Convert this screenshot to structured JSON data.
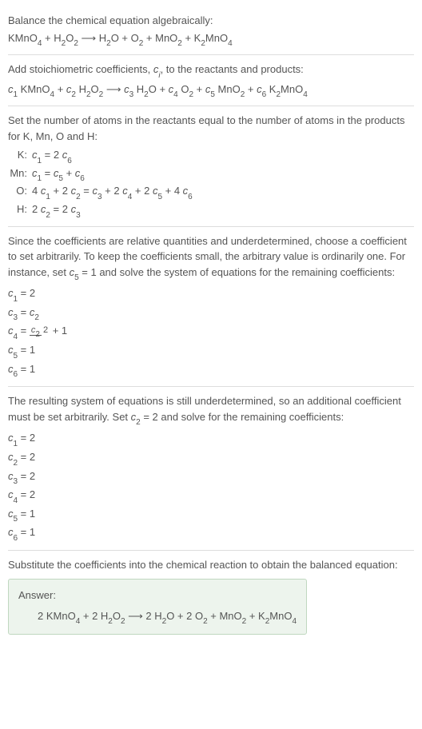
{
  "section1": {
    "line1": "Balance the chemical equation algebraically:",
    "eq_parts": [
      "KMnO",
      "4",
      " + H",
      "2",
      "O",
      "2",
      "  ⟶  H",
      "2",
      "O + O",
      "2",
      " + MnO",
      "2",
      " + K",
      "2",
      "MnO",
      "4"
    ]
  },
  "section2": {
    "line1_a": "Add stoichiometric coefficients, ",
    "line1_ci": "c",
    "line1_i": "i",
    "line1_b": ", to the reactants and products:",
    "eq_parts": [
      "c",
      "1",
      " KMnO",
      "4",
      " + ",
      "c",
      "2",
      " H",
      "2",
      "O",
      "2",
      "  ⟶  ",
      "c",
      "3",
      " H",
      "2",
      "O + ",
      "c",
      "4",
      " O",
      "2",
      " + ",
      "c",
      "5",
      " MnO",
      "2",
      " + ",
      "c",
      "6",
      " K",
      "2",
      "MnO",
      "4"
    ]
  },
  "section3": {
    "line1": "Set the number of atoms in the reactants equal to the number of atoms in the products for K, Mn, O and H:",
    "rows": [
      {
        "label": "K:",
        "eq": [
          "c",
          "1",
          " = 2 ",
          "c",
          "6"
        ]
      },
      {
        "label": "Mn:",
        "eq": [
          "c",
          "1",
          " = ",
          "c",
          "5",
          " + ",
          "c",
          "6"
        ]
      },
      {
        "label": "O:",
        "eq": [
          "4 ",
          "c",
          "1",
          " + 2 ",
          "c",
          "2",
          " = ",
          "c",
          "3",
          " + 2 ",
          "c",
          "4",
          " + 2 ",
          "c",
          "5",
          " + 4 ",
          "c",
          "6"
        ]
      },
      {
        "label": "H:",
        "eq": [
          "2 ",
          "c",
          "2",
          " = 2 ",
          "c",
          "3"
        ]
      }
    ]
  },
  "section4": {
    "line1_a": "Since the coefficients are relative quantities and underdetermined, choose a coefficient to set arbitrarily. To keep the coefficients small, the arbitrary value is ordinarily one. For instance, set ",
    "line1_c": "c",
    "line1_5": "5",
    "line1_b": " = 1 and solve the system of equations for the remaining coefficients:",
    "rows": [
      {
        "lhs": [
          "c",
          "1"
        ],
        "rhs": " = 2"
      },
      {
        "lhs": [
          "c",
          "3"
        ],
        "rhs_parts": [
          " = ",
          "c",
          "2"
        ]
      },
      {
        "lhs": [
          "c",
          "4"
        ],
        "frac_num": [
          "c",
          "2"
        ],
        "frac_den": "2",
        "rhs_after": " + 1"
      },
      {
        "lhs": [
          "c",
          "5"
        ],
        "rhs": " = 1"
      },
      {
        "lhs": [
          "c",
          "6"
        ],
        "rhs": " = 1"
      }
    ]
  },
  "section5": {
    "line1_a": "The resulting system of equations is still underdetermined, so an additional coefficient must be set arbitrarily. Set ",
    "line1_c": "c",
    "line1_2": "2",
    "line1_b": " = 2 and solve for the remaining coefficients:",
    "rows": [
      {
        "c": "c",
        "i": "1",
        "v": " = 2"
      },
      {
        "c": "c",
        "i": "2",
        "v": " = 2"
      },
      {
        "c": "c",
        "i": "3",
        "v": " = 2"
      },
      {
        "c": "c",
        "i": "4",
        "v": " = 2"
      },
      {
        "c": "c",
        "i": "5",
        "v": " = 1"
      },
      {
        "c": "c",
        "i": "6",
        "v": " = 1"
      }
    ]
  },
  "section6": {
    "line1": "Substitute the coefficients into the chemical reaction to obtain the balanced equation:",
    "answer_label": "Answer:",
    "eq_parts": [
      "2 KMnO",
      "4",
      " + 2 H",
      "2",
      "O",
      "2",
      "  ⟶  2 H",
      "2",
      "O + 2 O",
      "2",
      " + MnO",
      "2",
      " + K",
      "2",
      "MnO",
      "4"
    ]
  }
}
